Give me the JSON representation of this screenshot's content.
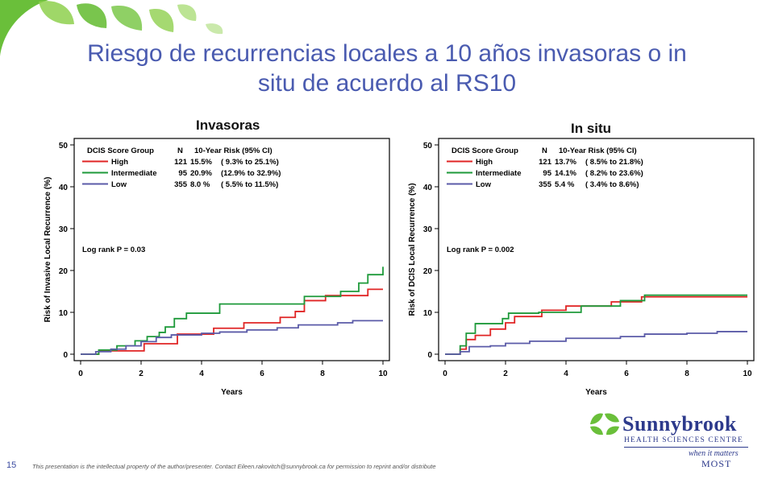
{
  "slide": {
    "title_line1": "Riesgo de recurrencias locales a 10 años invasoras o in",
    "title_line2": "situ de acuerdo al RS10",
    "slide_number": "15",
    "footer_note": "This presentation is the intellectual property of the author/presenter.   Contact Eileen.rakovitch@sunnybrook.ca for permission to reprint and/or distribute",
    "logo": {
      "name": "Sunnybrook",
      "subtitle": "HEALTH SCIENCES CENTRE",
      "tagline1": "when it matters",
      "tagline2": "MOST"
    },
    "colors": {
      "title": "#4a5bb0",
      "high": "#e02424",
      "intermediate": "#1e9a3a",
      "low": "#5b5ba8",
      "leaf": "#6abf3a"
    }
  },
  "chart_data": [
    {
      "type": "line",
      "panel_title": "Invasoras",
      "xlabel": "Years",
      "ylabel": "Risk of Invasive Local Recurrence (%)",
      "xlim": [
        0,
        10
      ],
      "ylim": [
        0,
        50
      ],
      "xticks": [
        "0",
        "2",
        "4",
        "6",
        "8",
        "10"
      ],
      "yticks": [
        "0",
        "10",
        "20",
        "30",
        "40",
        "50"
      ],
      "legend_header": {
        "group": "DCIS Score Group",
        "n": "N",
        "risk": "10-Year Risk (95% CI)"
      },
      "annotation": "Log rank P = 0.03",
      "grid": false,
      "legend_position": "top-left",
      "series": [
        {
          "name": "High",
          "n": "121",
          "risk": "15.5%",
          "ci": "( 9.3% to 25.1%)",
          "color": "#e02424",
          "x": [
            0,
            0.6,
            1.0,
            2.1,
            3.2,
            4.4,
            5.4,
            6.6,
            7.1,
            7.4,
            8.1,
            9.5,
            10
          ],
          "y": [
            0,
            0.8,
            0.8,
            2.5,
            4.8,
            6.2,
            7.5,
            8.8,
            10.2,
            12.8,
            14.0,
            15.5,
            15.5
          ]
        },
        {
          "name": "Intermediate",
          "n": "95",
          "risk": "20.9%",
          "ci": "(12.9% to 32.9%)",
          "color": "#1e9a3a",
          "x": [
            0,
            0.6,
            1.2,
            1.8,
            2.2,
            2.6,
            2.8,
            3.1,
            3.5,
            4.6,
            7.4,
            8.6,
            9.2,
            9.5,
            10
          ],
          "y": [
            0,
            1.0,
            2.0,
            3.2,
            4.2,
            5.2,
            6.5,
            8.5,
            9.8,
            12.0,
            13.8,
            15.0,
            17.0,
            19.0,
            20.9
          ]
        },
        {
          "name": "Low",
          "n": "355",
          "risk": "8.0 %",
          "ci": "( 5.5% to 11.5%)",
          "color": "#5b5ba8",
          "x": [
            0,
            0.5,
            1.0,
            1.5,
            2.0,
            2.5,
            3.0,
            4.0,
            4.6,
            5.5,
            6.5,
            7.2,
            8.5,
            9.0,
            10
          ],
          "y": [
            0,
            0.6,
            1.2,
            2.0,
            3.0,
            4.0,
            4.6,
            5.0,
            5.3,
            5.8,
            6.3,
            7.0,
            7.5,
            8.0,
            8.0
          ]
        }
      ]
    },
    {
      "type": "line",
      "panel_title": "In situ",
      "xlabel": "Years",
      "ylabel": "Risk of DCIS Local Recurrence (%)",
      "xlim": [
        0,
        10
      ],
      "ylim": [
        0,
        50
      ],
      "xticks": [
        "0",
        "2",
        "4",
        "6",
        "8",
        "10"
      ],
      "yticks": [
        "0",
        "10",
        "20",
        "30",
        "40",
        "50"
      ],
      "legend_header": {
        "group": "DCIS Score Group",
        "n": "N",
        "risk": "10-Year Risk (95% CI)"
      },
      "annotation": "Log rank P = 0.002",
      "grid": false,
      "legend_position": "top-left",
      "series": [
        {
          "name": "High",
          "n": "121",
          "risk": "13.7%",
          "ci": "( 8.5% to 21.8%)",
          "color": "#e02424",
          "x": [
            0,
            0.5,
            0.7,
            1.0,
            1.5,
            2.0,
            2.3,
            3.2,
            4.0,
            5.5,
            6.5,
            10
          ],
          "y": [
            0,
            1.2,
            3.5,
            4.5,
            6.0,
            7.5,
            9.0,
            10.5,
            11.5,
            12.5,
            13.7,
            13.7
          ]
        },
        {
          "name": "Intermediate",
          "n": "95",
          "risk": "14.1%",
          "ci": "( 8.2% to 23.6%)",
          "color": "#1e9a3a",
          "x": [
            0,
            0.5,
            0.7,
            1.0,
            1.9,
            2.1,
            3.1,
            4.5,
            5.8,
            6.6,
            10
          ],
          "y": [
            0,
            2.0,
            5.0,
            7.3,
            8.5,
            9.8,
            10.0,
            11.5,
            12.8,
            14.1,
            14.1
          ]
        },
        {
          "name": "Low",
          "n": "355",
          "risk": "5.4 %",
          "ci": "( 3.4% to 8.6%)",
          "color": "#5b5ba8",
          "x": [
            0,
            0.5,
            0.8,
            1.5,
            2.0,
            2.8,
            4.0,
            5.8,
            6.6,
            8.0,
            9.0,
            10
          ],
          "y": [
            0,
            0.6,
            1.8,
            2.0,
            2.6,
            3.1,
            3.8,
            4.2,
            4.8,
            5.0,
            5.4,
            5.4
          ]
        }
      ]
    }
  ]
}
